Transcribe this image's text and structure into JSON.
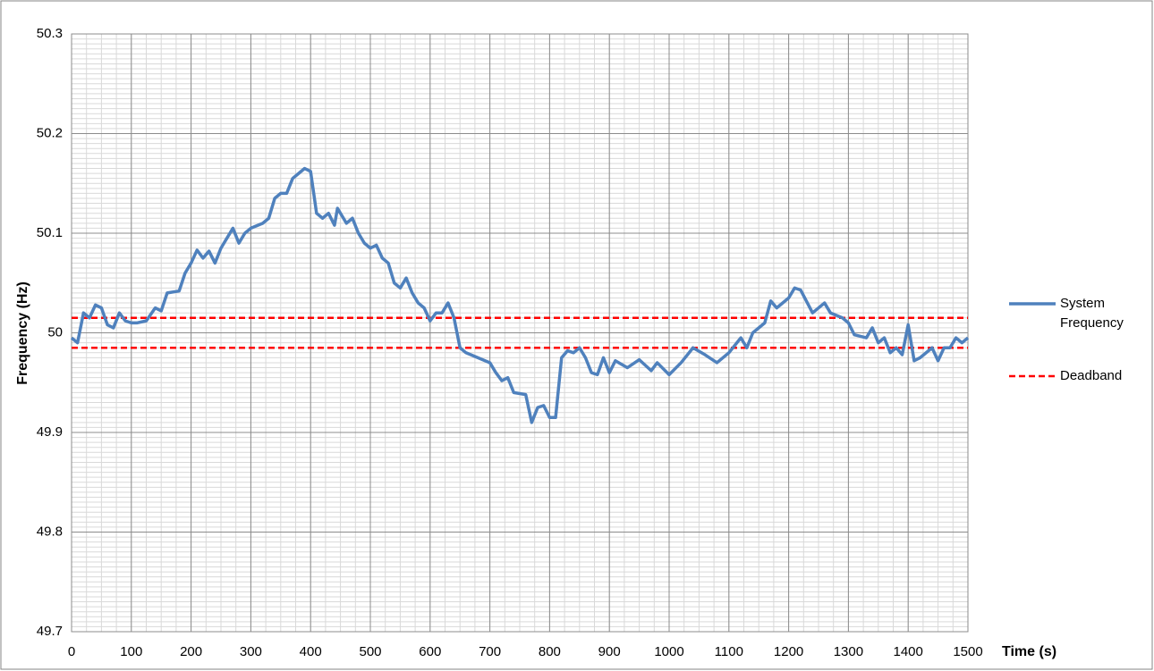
{
  "chart_data": {
    "type": "line",
    "xlabel": "Time (s)",
    "ylabel": "Frequency (Hz)",
    "x": [
      0,
      10,
      20,
      30,
      40,
      50,
      60,
      70,
      80,
      90,
      100,
      110,
      125,
      140,
      150,
      160,
      180,
      190,
      200,
      210,
      220,
      230,
      240,
      250,
      260,
      270,
      280,
      290,
      300,
      320,
      330,
      340,
      350,
      360,
      370,
      380,
      390,
      400,
      410,
      420,
      430,
      440,
      445,
      460,
      470,
      480,
      490,
      500,
      510,
      520,
      530,
      540,
      550,
      560,
      570,
      580,
      590,
      600,
      610,
      620,
      630,
      640,
      650,
      660,
      680,
      700,
      710,
      720,
      730,
      740,
      760,
      770,
      780,
      790,
      800,
      810,
      820,
      830,
      840,
      850,
      860,
      870,
      880,
      890,
      900,
      910,
      930,
      950,
      970,
      980,
      1000,
      1020,
      1040,
      1060,
      1080,
      1100,
      1120,
      1130,
      1140,
      1160,
      1170,
      1180,
      1200,
      1210,
      1220,
      1240,
      1260,
      1270,
      1290,
      1300,
      1310,
      1330,
      1340,
      1350,
      1360,
      1370,
      1380,
      1390,
      1400,
      1410,
      1420,
      1440,
      1450,
      1460,
      1470,
      1480,
      1490,
      1500
    ],
    "series": [
      {
        "name": "System Frequency",
        "color": "#4f81bd",
        "values": [
          49.995,
          49.99,
          50.02,
          50.015,
          50.028,
          50.025,
          50.008,
          50.005,
          50.02,
          50.012,
          50.01,
          50.01,
          50.012,
          50.025,
          50.022,
          50.04,
          50.042,
          50.06,
          50.07,
          50.083,
          50.075,
          50.082,
          50.07,
          50.085,
          50.095,
          50.105,
          50.09,
          50.1,
          50.105,
          50.11,
          50.115,
          50.135,
          50.14,
          50.14,
          50.155,
          50.16,
          50.165,
          50.162,
          50.12,
          50.115,
          50.12,
          50.108,
          50.125,
          50.11,
          50.115,
          50.1,
          50.09,
          50.085,
          50.088,
          50.075,
          50.07,
          50.05,
          50.045,
          50.055,
          50.04,
          50.03,
          50.025,
          50.012,
          50.02,
          50.02,
          50.03,
          50.015,
          49.985,
          49.98,
          49.975,
          49.97,
          49.96,
          49.952,
          49.955,
          49.94,
          49.938,
          49.91,
          49.925,
          49.927,
          49.915,
          49.915,
          49.975,
          49.982,
          49.98,
          49.985,
          49.975,
          49.96,
          49.958,
          49.975,
          49.96,
          49.972,
          49.965,
          49.973,
          49.962,
          49.97,
          49.958,
          49.97,
          49.985,
          49.978,
          49.97,
          49.98,
          49.995,
          49.985,
          50,
          50.01,
          50.032,
          50.025,
          50.035,
          50.045,
          50.043,
          50.02,
          50.03,
          50.02,
          50.015,
          50.01,
          49.998,
          49.995,
          50.005,
          49.99,
          49.995,
          49.98,
          49.985,
          49.978,
          50.008,
          49.972,
          49.975,
          49.985,
          49.972,
          49.985,
          49.985,
          49.995,
          49.99,
          49.995
        ]
      }
    ],
    "reference_lines": {
      "name": "Deadband",
      "color": "#ff0000",
      "style": "dashed",
      "values": [
        50.015,
        49.985
      ]
    },
    "xlim": [
      0,
      1500
    ],
    "xticks": [
      0,
      100,
      200,
      300,
      400,
      500,
      600,
      700,
      800,
      900,
      1000,
      1100,
      1200,
      1300,
      1400,
      1500
    ],
    "ylim": [
      49.7,
      50.3
    ],
    "yticks": [
      49.7,
      49.8,
      49.9,
      50,
      50.1,
      50.2,
      50.3
    ],
    "grid": true,
    "minor_grid": {
      "x": 25,
      "y": 0.005
    },
    "legend": "right"
  }
}
